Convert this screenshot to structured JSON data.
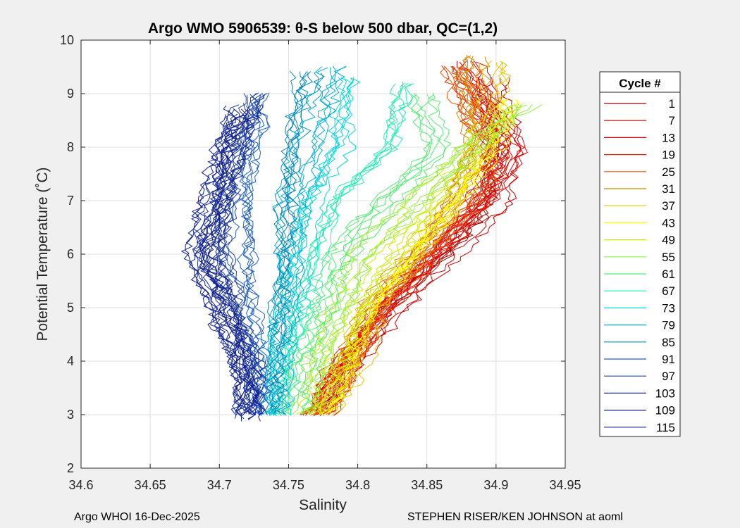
{
  "chart_data": {
    "type": "line",
    "title": "Argo WMO 5906539: θ-S below 500 dbar,  QC=(1,2)",
    "xlabel": "Salinity",
    "ylabel": "Potential Temperature (˚C)",
    "xlim": [
      34.6,
      34.95
    ],
    "ylim": [
      2,
      10
    ],
    "xticks": [
      "34.6",
      "34.65",
      "34.7",
      "34.75",
      "34.8",
      "34.85",
      "34.9",
      "34.95"
    ],
    "yticks": [
      "2",
      "3",
      "4",
      "5",
      "6",
      "7",
      "8",
      "9",
      "10"
    ],
    "grid": true,
    "legend": {
      "title": "Cycle #",
      "placement": "outside-right",
      "entries": [
        "1",
        "7",
        "13",
        "19",
        "25",
        "31",
        "37",
        "43",
        "49",
        "55",
        "61",
        "67",
        "73",
        "79",
        "85",
        "91",
        "97",
        "103",
        "109",
        "115"
      ],
      "colors": [
        "#a40000",
        "#d30000",
        "#f00000",
        "#e82000",
        "#ee5500",
        "#d88800",
        "#ecc000",
        "#fcfc00",
        "#c8f000",
        "#90f040",
        "#50f070",
        "#20f0b0",
        "#00d8e0",
        "#00b0d8",
        "#0088c0",
        "#2060c8",
        "#2040a8",
        "#1830a0",
        "#102080",
        "#102098"
      ]
    },
    "series_envelopes": [
      {
        "cycle": "1",
        "points": [
          [
            34.77,
            3.0
          ],
          [
            34.79,
            4.0
          ],
          [
            34.82,
            5.0
          ],
          [
            34.86,
            6.0
          ],
          [
            34.89,
            7.0
          ],
          [
            34.9,
            8.0
          ],
          [
            34.89,
            9.0
          ]
        ]
      },
      {
        "cycle": "7",
        "points": [
          [
            34.772,
            3.0
          ],
          [
            34.795,
            4.0
          ],
          [
            34.825,
            5.0
          ],
          [
            34.862,
            6.0
          ],
          [
            34.9,
            7.0
          ],
          [
            34.905,
            8.0
          ],
          [
            34.895,
            9.3
          ]
        ]
      },
      {
        "cycle": "13",
        "points": [
          [
            34.768,
            3.0
          ],
          [
            34.792,
            4.0
          ],
          [
            34.822,
            5.0
          ],
          [
            34.858,
            6.0
          ],
          [
            34.905,
            7.4
          ],
          [
            34.915,
            8.0
          ],
          [
            34.88,
            9.6
          ]
        ]
      },
      {
        "cycle": "19",
        "points": [
          [
            34.77,
            3.0
          ],
          [
            34.794,
            4.0
          ],
          [
            34.818,
            5.0
          ],
          [
            34.855,
            6.0
          ],
          [
            34.89,
            7.2
          ],
          [
            34.9,
            8.0
          ],
          [
            34.87,
            9.5
          ]
        ]
      },
      {
        "cycle": "25",
        "points": [
          [
            34.772,
            3.0
          ],
          [
            34.796,
            4.0
          ],
          [
            34.815,
            5.0
          ],
          [
            34.85,
            6.0
          ],
          [
            34.88,
            7.0
          ],
          [
            34.895,
            8.0
          ],
          [
            34.87,
            9.5
          ]
        ]
      },
      {
        "cycle": "31",
        "points": [
          [
            34.773,
            3.0
          ],
          [
            34.797,
            4.0
          ],
          [
            34.812,
            5.0
          ],
          [
            34.846,
            6.0
          ],
          [
            34.875,
            7.0
          ],
          [
            34.89,
            8.0
          ],
          [
            34.885,
            9.7
          ]
        ]
      },
      {
        "cycle": "37",
        "points": [
          [
            34.775,
            3.0
          ],
          [
            34.798,
            4.0
          ],
          [
            34.81,
            5.0
          ],
          [
            34.842,
            6.0
          ],
          [
            34.87,
            7.0
          ],
          [
            34.89,
            8.0
          ],
          [
            34.9,
            9.6
          ]
        ]
      },
      {
        "cycle": "43",
        "points": [
          [
            34.772,
            3.0
          ],
          [
            34.79,
            4.0
          ],
          [
            34.805,
            5.0
          ],
          [
            34.835,
            6.0
          ],
          [
            34.865,
            7.0
          ],
          [
            34.895,
            8.0
          ],
          [
            34.905,
            8.9
          ]
        ]
      },
      {
        "cycle": "49",
        "points": [
          [
            34.765,
            3.0
          ],
          [
            34.78,
            4.0
          ],
          [
            34.795,
            5.0
          ],
          [
            34.82,
            6.0
          ],
          [
            34.85,
            7.0
          ],
          [
            34.885,
            8.0
          ],
          [
            34.91,
            8.8
          ]
        ]
      },
      {
        "cycle": "55",
        "points": [
          [
            34.758,
            3.0
          ],
          [
            34.77,
            4.0
          ],
          [
            34.785,
            5.0
          ],
          [
            34.8,
            6.0
          ],
          [
            34.84,
            7.0
          ],
          [
            34.88,
            8.0
          ],
          [
            34.92,
            8.8
          ]
        ]
      },
      {
        "cycle": "61",
        "points": [
          [
            34.752,
            3.0
          ],
          [
            34.762,
            4.0
          ],
          [
            34.775,
            5.0
          ],
          [
            34.79,
            6.0
          ],
          [
            34.82,
            7.0
          ],
          [
            34.86,
            8.0
          ],
          [
            34.85,
            9.0
          ]
        ]
      },
      {
        "cycle": "67",
        "points": [
          [
            34.748,
            3.0
          ],
          [
            34.755,
            4.0
          ],
          [
            34.765,
            5.0
          ],
          [
            34.775,
            6.0
          ],
          [
            34.79,
            7.0
          ],
          [
            34.83,
            8.0
          ],
          [
            34.84,
            9.2
          ]
        ]
      },
      {
        "cycle": "73",
        "points": [
          [
            34.744,
            3.0
          ],
          [
            34.748,
            4.0
          ],
          [
            34.756,
            5.0
          ],
          [
            34.762,
            6.0
          ],
          [
            34.77,
            7.0
          ],
          [
            34.79,
            8.0
          ],
          [
            34.8,
            9.3
          ]
        ]
      },
      {
        "cycle": "79",
        "points": [
          [
            34.74,
            3.0
          ],
          [
            34.744,
            4.0
          ],
          [
            34.748,
            5.0
          ],
          [
            34.752,
            6.0
          ],
          [
            34.755,
            7.0
          ],
          [
            34.765,
            8.0
          ],
          [
            34.78,
            9.5
          ]
        ]
      },
      {
        "cycle": "85",
        "points": [
          [
            34.735,
            3.0
          ],
          [
            34.738,
            4.0
          ],
          [
            34.74,
            5.0
          ],
          [
            34.744,
            6.0
          ],
          [
            34.745,
            7.0
          ],
          [
            34.75,
            8.0
          ],
          [
            34.76,
            9.4
          ]
        ]
      },
      {
        "cycle": "91",
        "points": [
          [
            34.728,
            3.0
          ],
          [
            34.728,
            4.0
          ],
          [
            34.722,
            5.0
          ],
          [
            34.718,
            6.0
          ],
          [
            34.72,
            7.0
          ],
          [
            34.725,
            8.0
          ],
          [
            34.73,
            9.0
          ]
        ]
      },
      {
        "cycle": "97",
        "points": [
          [
            34.724,
            3.0
          ],
          [
            34.722,
            4.0
          ],
          [
            34.712,
            5.0
          ],
          [
            34.7,
            6.0
          ],
          [
            34.705,
            7.0
          ],
          [
            34.715,
            8.0
          ],
          [
            34.725,
            9.0
          ]
        ]
      },
      {
        "cycle": "103",
        "points": [
          [
            34.722,
            3.0
          ],
          [
            34.718,
            4.0
          ],
          [
            34.705,
            5.0
          ],
          [
            34.69,
            6.0
          ],
          [
            34.7,
            7.0
          ],
          [
            34.71,
            8.0
          ],
          [
            34.72,
            8.8
          ]
        ]
      },
      {
        "cycle": "109",
        "points": [
          [
            34.725,
            3.0
          ],
          [
            34.72,
            4.0
          ],
          [
            34.708,
            5.0
          ],
          [
            34.695,
            6.0
          ],
          [
            34.705,
            7.0
          ],
          [
            34.715,
            8.0
          ],
          [
            34.72,
            8.7
          ]
        ]
      },
      {
        "cycle": "115",
        "points": [
          [
            34.722,
            2.9
          ],
          [
            34.718,
            4.0
          ],
          [
            34.702,
            5.0
          ],
          [
            34.685,
            6.0
          ],
          [
            34.695,
            7.0
          ],
          [
            34.705,
            8.0
          ],
          [
            34.715,
            8.6
          ]
        ]
      }
    ]
  },
  "footer": {
    "left": "Argo WHOI 16-Dec-2025",
    "right": "STEPHEN RISER/KEN JOHNSON at aoml"
  }
}
